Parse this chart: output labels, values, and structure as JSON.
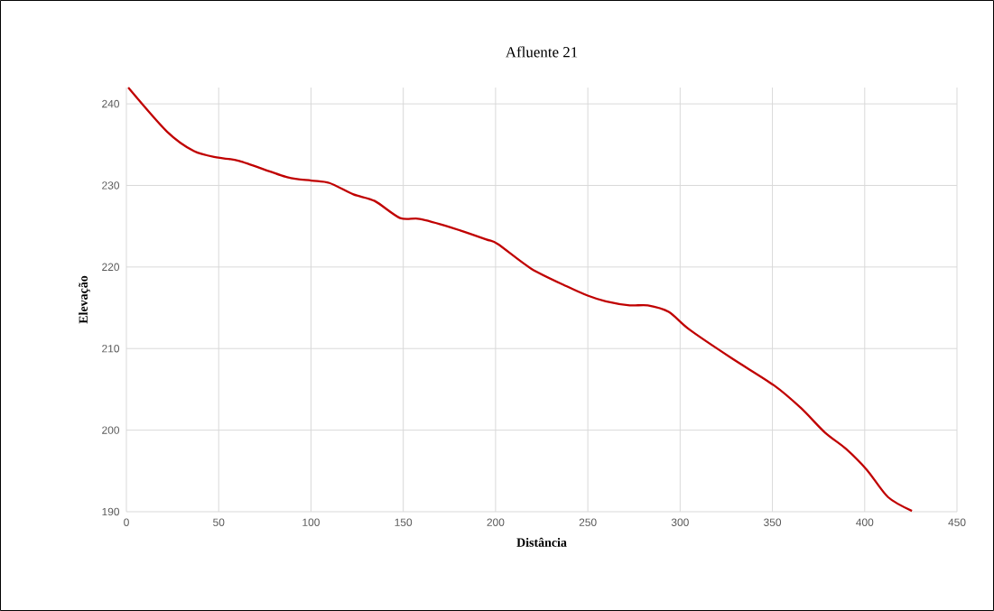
{
  "chart_data": {
    "type": "line",
    "title": "Afluente 21",
    "xlabel": "Distância",
    "ylabel": "Elevação",
    "xlim": [
      0,
      450
    ],
    "xticks": [
      0,
      50,
      100,
      150,
      200,
      250,
      300,
      350,
      400,
      450
    ],
    "ylim": [
      190,
      242
    ],
    "yticks": [
      190,
      200,
      210,
      220,
      230,
      240
    ],
    "grid": true,
    "marker": "none",
    "line_style": "solid",
    "series": [
      {
        "color": "#c00000",
        "x": [
          1,
          22,
          36.7,
          49.8,
          61.2,
          87.2,
          100.2,
          110,
          123,
          134.5,
          148.3,
          158.9,
          175.2,
          194.7,
          201.3,
          219.3,
          238.9,
          249.9,
          259.7,
          272.7,
          282.5,
          293.8,
          305.2,
          328,
          350.8,
          365.5,
          378.5,
          389.9,
          401.3,
          412.6,
          425.6
        ],
        "values": [
          242,
          236.6,
          234.2,
          233.4,
          233,
          231,
          230.6,
          230.3,
          228.9,
          228.1,
          226,
          225.9,
          224.9,
          223.4,
          222.8,
          219.8,
          217.6,
          216.5,
          215.8,
          215.3,
          215.3,
          214.5,
          212.3,
          208.8,
          205.5,
          202.7,
          199.7,
          197.7,
          195.1,
          191.8,
          190.1
        ]
      }
    ]
  }
}
